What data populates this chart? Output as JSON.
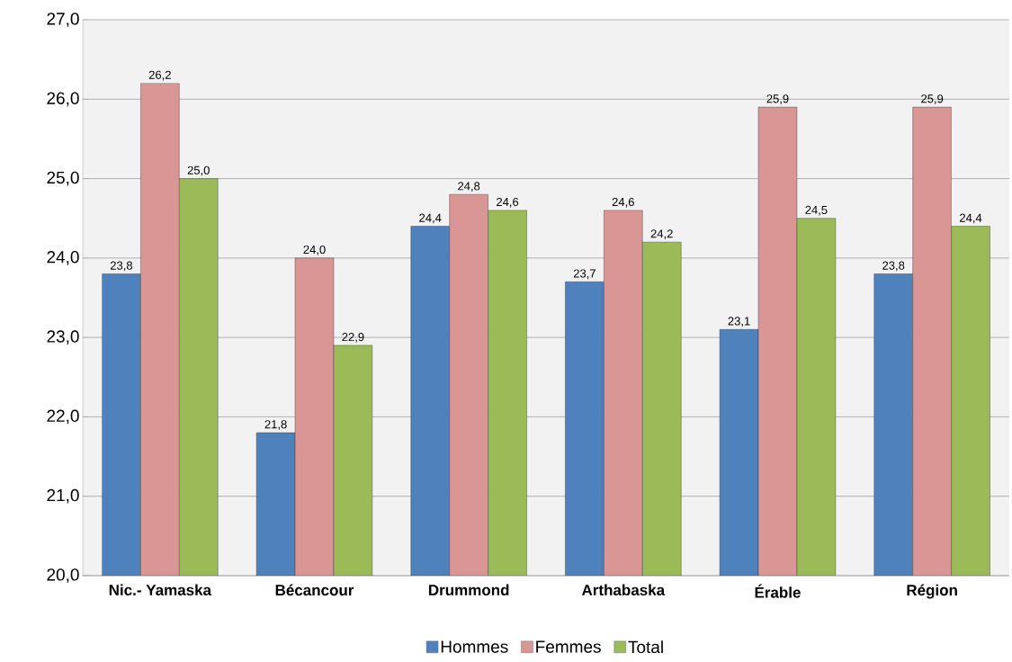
{
  "chart_data": {
    "type": "bar",
    "categories": [
      "Nic.- Yamaska",
      "Bécancour",
      "Drummond",
      "Arthabaska",
      "Érable",
      "Région"
    ],
    "series": [
      {
        "name": "Hommes",
        "color": "#4f81bd",
        "values": [
          23.8,
          21.8,
          24.4,
          23.7,
          23.1,
          23.8
        ],
        "value_labels": [
          "23,8",
          "21,8",
          "24,4",
          "23,7",
          "23,1",
          "23,8"
        ]
      },
      {
        "name": "Femmes",
        "color": "#d99694",
        "values": [
          26.2,
          24.0,
          24.8,
          24.6,
          25.9,
          25.9
        ],
        "value_labels": [
          "26,2",
          "24,0",
          "24,8",
          "24,6",
          "25,9",
          "25,9"
        ]
      },
      {
        "name": "Total",
        "color": "#9bbb59",
        "values": [
          25.0,
          22.9,
          24.6,
          24.2,
          24.5,
          24.4
        ],
        "value_labels": [
          "25,0",
          "22,9",
          "24,6",
          "24,2",
          "24,5",
          "24,4"
        ]
      }
    ],
    "ylim": [
      20,
      27
    ],
    "yticks": [
      {
        "value": 20,
        "label": "20,0"
      },
      {
        "value": 21,
        "label": "21,0"
      },
      {
        "value": 22,
        "label": "22,0"
      },
      {
        "value": 23,
        "label": "23,0"
      },
      {
        "value": 24,
        "label": "24,0"
      },
      {
        "value": 25,
        "label": "25,0"
      },
      {
        "value": 26,
        "label": "26,0"
      },
      {
        "value": 27,
        "label": "27,0"
      }
    ],
    "grid": "y",
    "legend": "bottom"
  }
}
